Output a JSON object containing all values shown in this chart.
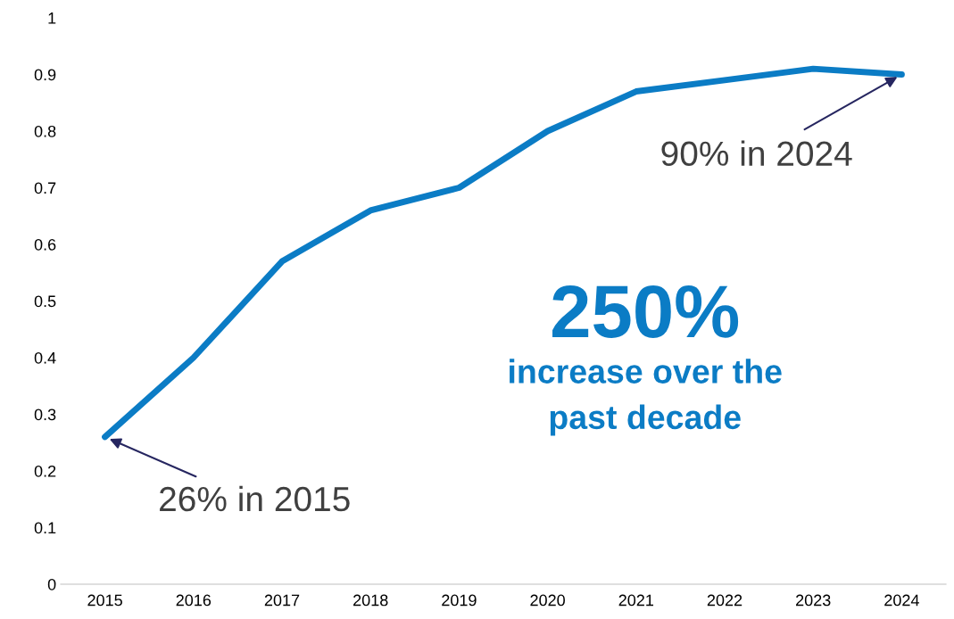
{
  "chart_data": {
    "type": "line",
    "categories": [
      "2015",
      "2016",
      "2017",
      "2018",
      "2019",
      "2020",
      "2021",
      "2022",
      "2023",
      "2024"
    ],
    "series": [
      {
        "color": "#0b7cc5",
        "values": [
          0.26,
          0.4,
          0.57,
          0.66,
          0.7,
          0.8,
          0.87,
          0.89,
          0.91,
          0.9
        ]
      }
    ],
    "ylim": [
      0,
      1
    ],
    "yticks": [
      0,
      0.1,
      0.2,
      0.3,
      0.4,
      0.5,
      0.6,
      0.7,
      0.8,
      0.9,
      1
    ],
    "grid": false,
    "legend": false,
    "marker": "none",
    "line_style": "solid",
    "annotations": [
      {
        "text": "26% in 2015",
        "x": "2015",
        "y": 0.26
      },
      {
        "text": "90% in 2024",
        "x": "2024",
        "y": 0.9
      },
      "250%",
      "increase over the\npast decade"
    ]
  }
}
